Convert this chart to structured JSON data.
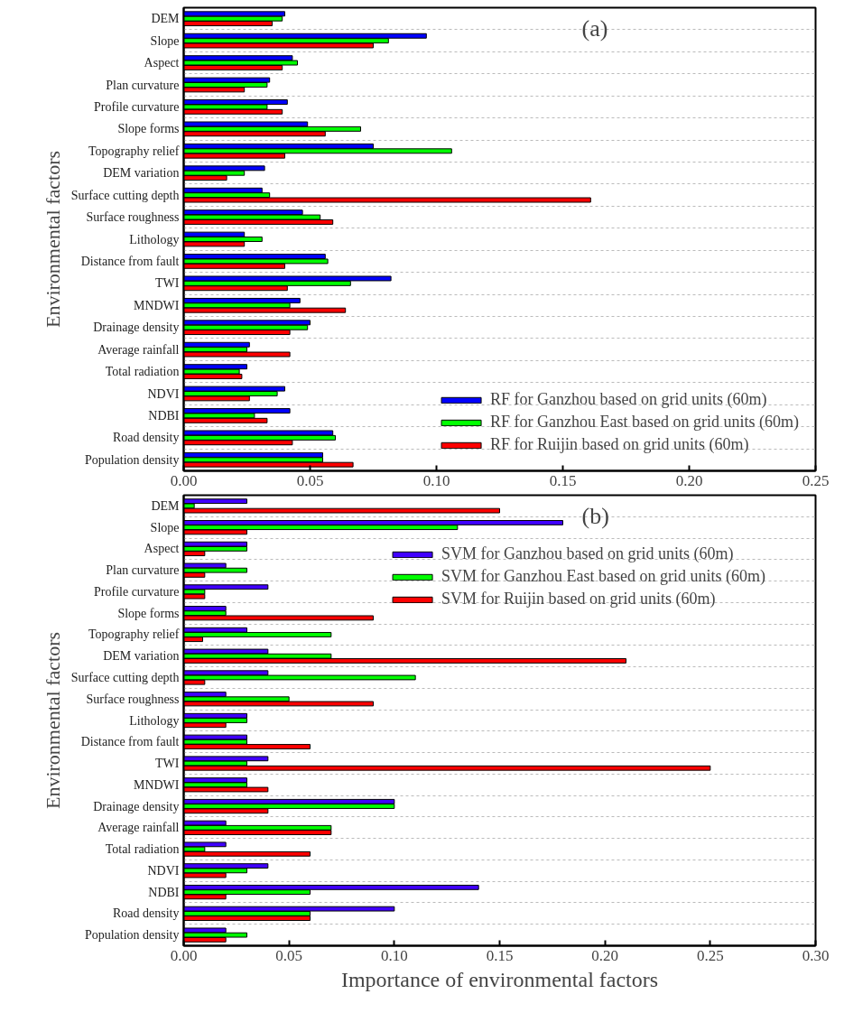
{
  "chart_data": [
    {
      "type": "bar",
      "orientation": "horizontal",
      "ylabel": "Environmental factors",
      "annotations": [
        "(a)"
      ],
      "legend": "bottom right",
      "grid": "y",
      "categories": [
        "DEM",
        "Slope",
        "Aspect",
        "Plan curvature",
        "Profile curvature",
        "Slope forms",
        "Topography relief",
        "DEM variation",
        "Surface cutting depth",
        "Surface roughness",
        "Lithology",
        "Distance from fault",
        "TWI",
        "MNDWI",
        "Drainage density",
        "Average rainfall",
        "Total radiation",
        "NDVI",
        "NDBI",
        "Road density",
        "Population density"
      ],
      "xlim": [
        0,
        0.25
      ],
      "xticks": [
        {
          "value": 0,
          "label": "0.00"
        },
        {
          "value": 0.05,
          "label": "0.05"
        },
        {
          "value": 0.1,
          "label": "0.10"
        },
        {
          "value": 0.15,
          "label": "0.15"
        },
        {
          "value": 0.2,
          "label": "0.20"
        },
        {
          "value": 0.25,
          "label": "0.25"
        }
      ],
      "series": [
        {
          "name": "RF for Ganzhou based on grid units (60m)",
          "color": "#0000ff",
          "values": [
            0.04,
            0.096,
            0.043,
            0.034,
            0.041,
            0.049,
            0.075,
            0.032,
            0.031,
            0.047,
            0.024,
            0.056,
            0.082,
            0.046,
            0.05,
            0.026,
            0.025,
            0.04,
            0.042,
            0.059,
            0.055
          ]
        },
        {
          "name": "RF for Ganzhou East based on grid units (60m)",
          "color": "#00ff00",
          "values": [
            0.039,
            0.081,
            0.045,
            0.033,
            0.033,
            0.07,
            0.106,
            0.024,
            0.034,
            0.054,
            0.031,
            0.057,
            0.066,
            0.042,
            0.049,
            0.025,
            0.022,
            0.037,
            0.028,
            0.06,
            0.055
          ]
        },
        {
          "name": "RF for Ruijin based on grid units (60m)",
          "color": "#ff0000",
          "values": [
            0.035,
            0.075,
            0.039,
            0.024,
            0.039,
            0.056,
            0.04,
            0.017,
            0.161,
            0.059,
            0.024,
            0.04,
            0.041,
            0.064,
            0.042,
            0.042,
            0.023,
            0.026,
            0.033,
            0.043,
            0.067
          ]
        }
      ]
    },
    {
      "type": "bar",
      "orientation": "horizontal",
      "xlabel": "Importance of environmental factors",
      "ylabel": "Environmental factors",
      "annotations": [
        "(b)"
      ],
      "legend": "top right",
      "grid": "y",
      "categories": [
        "DEM",
        "Slope",
        "Aspect",
        "Plan curvature",
        "Profile curvature",
        "Slope forms",
        "Topography relief",
        "DEM variation",
        "Surface cutting depth",
        "Surface roughness",
        "Lithology",
        "Distance from fault",
        "TWI",
        "MNDWI",
        "Drainage density",
        "Average rainfall",
        "Total radiation",
        "NDVI",
        "NDBI",
        "Road density",
        "Population density"
      ],
      "xlim": [
        0,
        0.3
      ],
      "xticks": [
        {
          "value": 0,
          "label": "0.00"
        },
        {
          "value": 0.05,
          "label": "0.05"
        },
        {
          "value": 0.1,
          "label": "0.10"
        },
        {
          "value": 0.15,
          "label": "0.15"
        },
        {
          "value": 0.2,
          "label": "0.20"
        },
        {
          "value": 0.25,
          "label": "0.25"
        },
        {
          "value": 0.3,
          "label": "0.30"
        }
      ],
      "series": [
        {
          "name": "SVM for Ganzhou based on grid units (60m)",
          "color": "#4000ff",
          "values": [
            0.03,
            0.18,
            0.03,
            0.02,
            0.04,
            0.02,
            0.03,
            0.04,
            0.04,
            0.02,
            0.03,
            0.03,
            0.04,
            0.03,
            0.1,
            0.02,
            0.02,
            0.04,
            0.14,
            0.1,
            0.02
          ]
        },
        {
          "name": "SVM for Ganzhou East based on grid units (60m)",
          "color": "#00ff00",
          "values": [
            0.005,
            0.13,
            0.03,
            0.03,
            0.01,
            0.02,
            0.07,
            0.07,
            0.11,
            0.05,
            0.03,
            0.03,
            0.03,
            0.03,
            0.1,
            0.07,
            0.01,
            0.03,
            0.06,
            0.06,
            0.03
          ]
        },
        {
          "name": "SVM for Ruijin based on grid units (60m)",
          "color": "#ff0000",
          "values": [
            0.15,
            0.03,
            0.01,
            0.01,
            0.01,
            0.09,
            0.009,
            0.21,
            0.01,
            0.09,
            0.02,
            0.06,
            0.25,
            0.04,
            0.04,
            0.07,
            0.06,
            0.02,
            0.02,
            0.06,
            0.02
          ]
        }
      ]
    }
  ]
}
